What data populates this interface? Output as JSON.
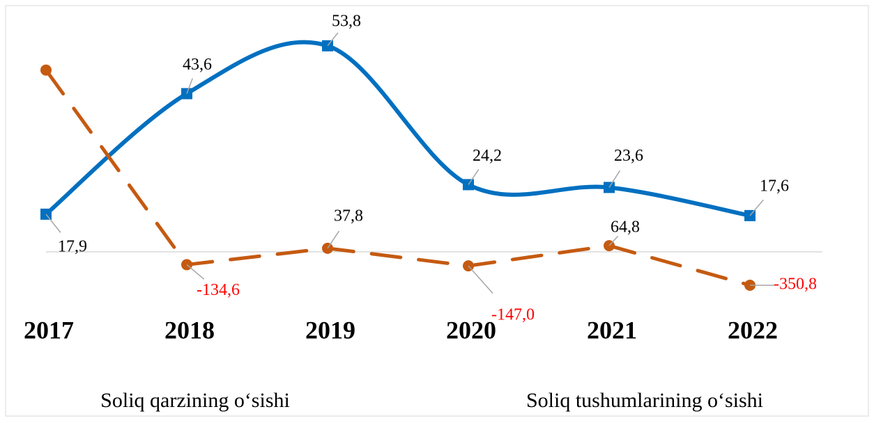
{
  "chart_data": {
    "type": "line",
    "categories": [
      "2017",
      "2018",
      "2019",
      "2020",
      "2021",
      "2022"
    ],
    "series": [
      {
        "name": "Soliq tushumlarining o‘sishi",
        "color": "#0070c0",
        "marker": "square",
        "smooth": true,
        "values": [
          17.9,
          43.6,
          53.8,
          24.2,
          23.6,
          17.6
        ],
        "value_labels": [
          "17,9",
          "43,6",
          "53,8",
          "24,2",
          "23,6",
          "17,6"
        ]
      },
      {
        "name": "Soliq qarzining o‘sishi",
        "color": "#c55a11",
        "marker": "circle",
        "dashed": true,
        "axis": "y2",
        "values": [
          1910,
          -134.6,
          37.8,
          -147.0,
          64.8,
          -350.8
        ],
        "value_labels": [
          null,
          "-134,6",
          "37,8",
          "-147,0",
          "64,8",
          "-350,8"
        ]
      }
    ],
    "legend_order": [
      1,
      0
    ],
    "negative_label_color": "#ff0000",
    "ylim": [
      -1.7,
      60.6
    ],
    "y2lim": [
      -570,
      2500
    ]
  }
}
